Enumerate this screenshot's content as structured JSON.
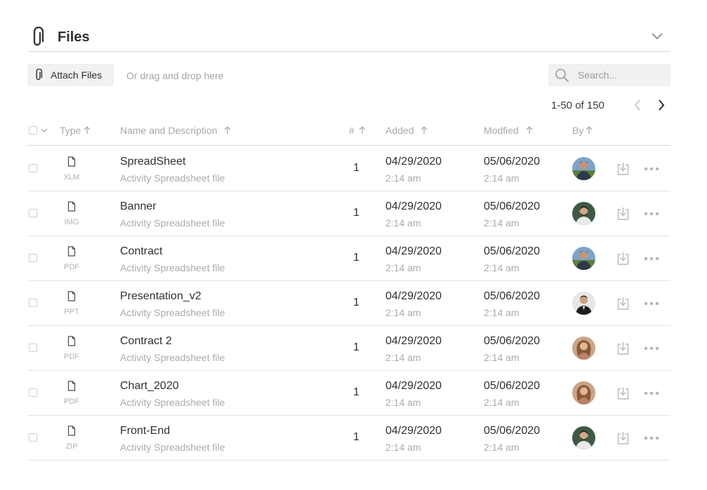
{
  "header": {
    "title": "Files"
  },
  "toolbar": {
    "attach_label": "Attach Files",
    "drag_hint": "Or drag and drop here",
    "search_placeholder": "Search..."
  },
  "pagination": {
    "range_text": "1-50 of 150"
  },
  "columns": {
    "type": "Type",
    "name": "Name and Description",
    "count": "#",
    "added": "Added",
    "modified": "Modfied",
    "by": "By"
  },
  "rows": [
    {
      "type": "XLM",
      "name": "SpreadSheet",
      "description": "Activity Spreadsheet file",
      "count": "1",
      "added_date": "04/29/2020",
      "added_time": "2:14 am",
      "modified_date": "05/06/2020",
      "modified_time": "2:14 am",
      "avatar": "man-outdoors"
    },
    {
      "type": "IMG",
      "name": "Banner",
      "description": "Activity Spreadsheet file",
      "count": "1",
      "added_date": "04/29/2020",
      "added_time": "2:14 am",
      "modified_date": "05/06/2020",
      "modified_time": "2:14 am",
      "avatar": "man-bearded"
    },
    {
      "type": "PDF",
      "name": "Contract",
      "description": "Activity Spreadsheet file",
      "count": "1",
      "added_date": "04/29/2020",
      "added_time": "2:14 am",
      "modified_date": "05/06/2020",
      "modified_time": "2:14 am",
      "avatar": "man-outdoors"
    },
    {
      "type": "PPT",
      "name": "Presentation_v2",
      "description": "Activity Spreadsheet file",
      "count": "1",
      "added_date": "04/29/2020",
      "added_time": "2:14 am",
      "modified_date": "05/06/2020",
      "modified_time": "2:14 am",
      "avatar": "man-suit"
    },
    {
      "type": "PDF",
      "name": "Contract 2",
      "description": "Activity Spreadsheet file",
      "count": "1",
      "added_date": "04/29/2020",
      "added_time": "2:14 am",
      "modified_date": "05/06/2020",
      "modified_time": "2:14 am",
      "avatar": "woman-curly"
    },
    {
      "type": "PDF",
      "name": "Chart_2020",
      "description": "Activity Spreadsheet file",
      "count": "1",
      "added_date": "04/29/2020",
      "added_time": "2:14 am",
      "modified_date": "05/06/2020",
      "modified_time": "2:14 am",
      "avatar": "woman-curly"
    },
    {
      "type": "ZIP",
      "name": "Front-End",
      "description": "Activity Spreadsheet file",
      "count": "1",
      "added_date": "04/29/2020",
      "added_time": "2:14 am",
      "modified_date": "05/06/2020",
      "modified_time": "2:14 am",
      "avatar": "man-bearded"
    }
  ],
  "icons": {
    "title_icon": "paperclip-icon",
    "collapse_icon": "chevron-down-icon",
    "search_icon": "search-icon",
    "file_icon": "file-icon",
    "download_icon": "download-icon",
    "more_icon": "more-horizontal-icon"
  },
  "colors": {
    "text_primary": "#2f2f2f",
    "text_muted": "#ababab",
    "button_bg": "#eff1f2",
    "divider": "#d7d7d7"
  }
}
